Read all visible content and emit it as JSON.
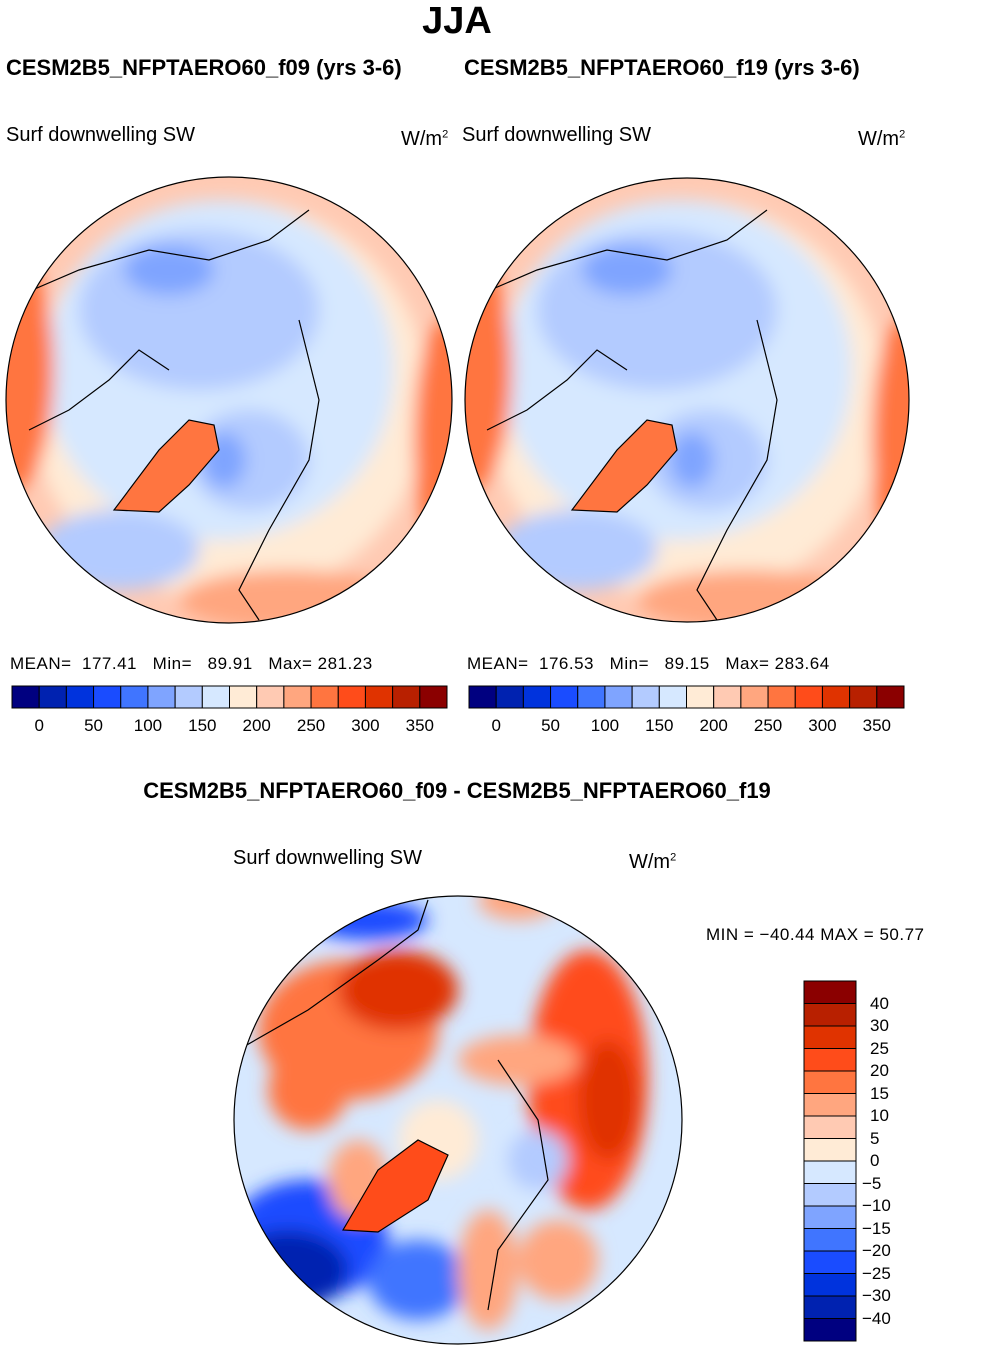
{
  "title": "JJA",
  "panels": [
    {
      "case": "CESM2B5_NFPTAERO60_f09 (yrs 3-6)",
      "variable": "Surf downwelling SW",
      "units_base": "W/m",
      "units_exp": "2",
      "stats": {
        "mean_label": "MEAN=",
        "mean": "177.41",
        "min_label": "Min=",
        "min": "89.91",
        "max_label": "Max=",
        "max": "281.23"
      }
    },
    {
      "case": "CESM2B5_NFPTAERO60_f19 (yrs 3-6)",
      "variable": "Surf downwelling SW",
      "units_base": "W/m",
      "units_exp": "2",
      "stats": {
        "mean_label": "MEAN=",
        "mean": "176.53",
        "min_label": "Min=",
        "min": "89.15",
        "max_label": "Max=",
        "max": "283.64"
      }
    }
  ],
  "abs_colorbar": {
    "ticks": [
      "0",
      "50",
      "100",
      "150",
      "200",
      "250",
      "300",
      "350"
    ],
    "colors": [
      "#000080",
      "#0022b0",
      "#0033dd",
      "#1a4cff",
      "#4075ff",
      "#7fa4ff",
      "#b3cbff",
      "#d6e8ff",
      "#ffebd6",
      "#ffcab3",
      "#ffa67f",
      "#ff7540",
      "#ff4c1a",
      "#e03300",
      "#b82000",
      "#8b0000"
    ]
  },
  "diff": {
    "title": "CESM2B5_NFPTAERO60_f09 - CESM2B5_NFPTAERO60_f19",
    "variable": "Surf downwelling SW",
    "units_base": "W/m",
    "units_exp": "2",
    "minmax": "MIN  =  −40.44  MAX  =    50.77",
    "colorbar_ticks": [
      "40",
      "30",
      "25",
      "20",
      "15",
      "10",
      "5",
      "0",
      "−5",
      "−10",
      "−15",
      "−20",
      "−25",
      "−30",
      "−40"
    ]
  }
}
